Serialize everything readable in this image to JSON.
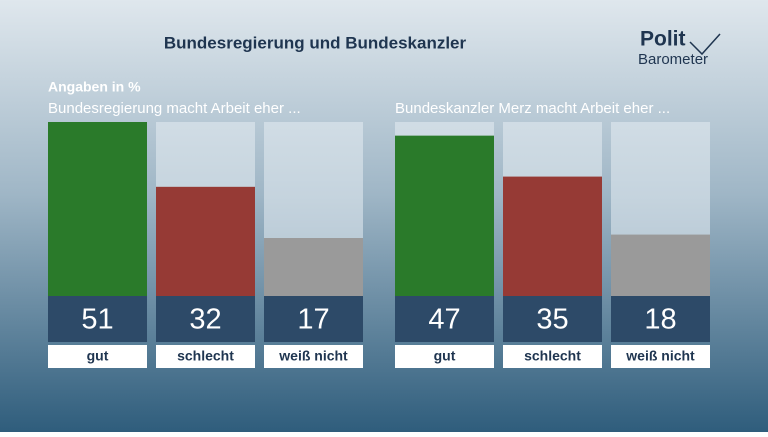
{
  "title": "Bundesregierung und Bundeskanzler",
  "logo": [
    "Polit",
    "Barometer"
  ],
  "note": "Angaben in %",
  "chart_data": [
    {
      "type": "bar",
      "subtitle": "Bundesregierung macht Arbeit eher ...",
      "categories": [
        "gut",
        "schlecht",
        "weiß nicht"
      ],
      "values": [
        51,
        32,
        17
      ],
      "colors": [
        "#2a7a2a",
        "#963a35",
        "#9a9a9a"
      ]
    },
    {
      "type": "bar",
      "subtitle": "Bundeskanzler Merz macht Arbeit eher ...",
      "categories": [
        "gut",
        "schlecht",
        "weiß nicht"
      ],
      "values": [
        47,
        35,
        18
      ],
      "colors": [
        "#2a7a2a",
        "#963a35",
        "#9a9a9a"
      ]
    }
  ]
}
